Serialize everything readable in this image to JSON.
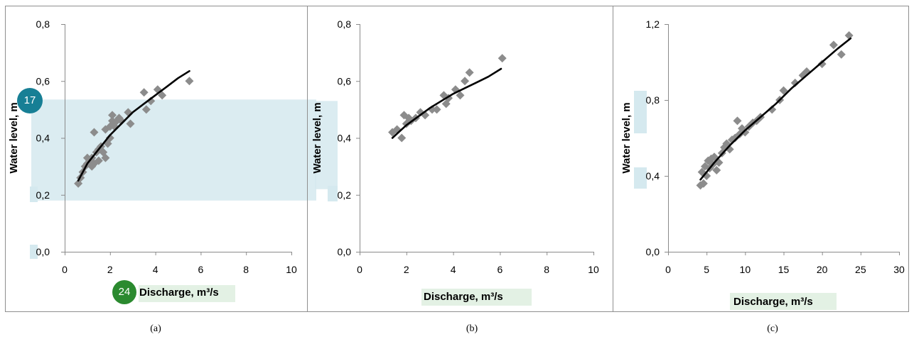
{
  "captions": [
    "(a)",
    "(b)",
    "(c)"
  ],
  "badges": [
    "17",
    "24"
  ],
  "colors": {
    "points": "#8c8c8c",
    "trend": "#000000",
    "highlight": "#d5e9ef",
    "label_highlight": "#e3f1e4",
    "frame": "#8f8f8f",
    "badge_teal": "#177f95",
    "badge_green": "#2b8a2f"
  },
  "chart_data": [
    {
      "type": "scatter",
      "title": "",
      "xlabel": "Discharge, m³/s",
      "ylabel": "Water level, m",
      "xlim": [
        0,
        10
      ],
      "ylim": [
        0,
        0.8
      ],
      "xticks": [
        "0",
        "2",
        "4",
        "6",
        "8",
        "10"
      ],
      "yticks": [
        "0,0",
        "0,2",
        "0,4",
        "0,6",
        "0,8"
      ],
      "series": [
        {
          "marker": "diamond",
          "x": [
            0.6,
            0.7,
            0.8,
            0.9,
            1.0,
            1.0,
            1.1,
            1.2,
            1.2,
            1.3,
            1.3,
            1.4,
            1.5,
            1.5,
            1.6,
            1.7,
            1.8,
            1.8,
            1.9,
            2.0,
            2.0,
            2.1,
            2.1,
            2.2,
            2.3,
            2.4,
            2.5,
            2.8,
            2.9,
            3.5,
            3.6,
            3.8,
            4.1,
            4.3,
            5.5
          ],
          "y": [
            0.24,
            0.26,
            0.28,
            0.3,
            0.31,
            0.33,
            0.32,
            0.33,
            0.3,
            0.42,
            0.31,
            0.35,
            0.32,
            0.36,
            0.37,
            0.35,
            0.33,
            0.43,
            0.38,
            0.4,
            0.44,
            0.48,
            0.46,
            0.44,
            0.46,
            0.47,
            0.46,
            0.49,
            0.45,
            0.56,
            0.5,
            0.53,
            0.57,
            0.55,
            0.6
          ]
        }
      ],
      "trendline": {
        "x": [
          0.6,
          1,
          1.5,
          2,
          2.5,
          3,
          3.5,
          4,
          4.5,
          5,
          5.5
        ],
        "y": [
          0.25,
          0.31,
          0.36,
          0.41,
          0.45,
          0.49,
          0.52,
          0.55,
          0.58,
          0.61,
          0.635
        ]
      },
      "highlight_band": [
        0.18,
        0.535
      ]
    },
    {
      "type": "scatter",
      "title": "",
      "xlabel": "Discharge, m³/s",
      "ylabel": "Water level, m",
      "xlim": [
        0,
        10
      ],
      "ylim": [
        0,
        0.8
      ],
      "xticks": [
        "0",
        "2",
        "4",
        "6",
        "8",
        "10"
      ],
      "yticks": [
        "0,0",
        "0,2",
        "0,4",
        "0,6",
        "0,8"
      ],
      "series": [
        {
          "marker": "diamond",
          "x": [
            1.4,
            1.6,
            1.8,
            1.9,
            2.0,
            2.1,
            2.2,
            2.4,
            2.6,
            2.8,
            3.1,
            3.3,
            3.6,
            3.7,
            3.8,
            4.1,
            4.3,
            4.5,
            4.7,
            6.1
          ],
          "y": [
            0.42,
            0.43,
            0.4,
            0.48,
            0.45,
            0.47,
            0.46,
            0.47,
            0.49,
            0.48,
            0.5,
            0.5,
            0.55,
            0.52,
            0.54,
            0.57,
            0.55,
            0.6,
            0.63,
            0.68
          ]
        }
      ],
      "trendline": {
        "x": [
          1.4,
          2,
          2.5,
          3,
          3.5,
          4,
          4.5,
          5,
          5.5,
          6.05
        ],
        "y": [
          0.4,
          0.445,
          0.475,
          0.505,
          0.53,
          0.555,
          0.575,
          0.595,
          0.615,
          0.643
        ]
      },
      "highlight_band": [
        0.22,
        0.53
      ]
    },
    {
      "type": "scatter",
      "title": "",
      "xlabel": "Discharge, m³/s",
      "ylabel": "Water level, m",
      "xlim": [
        0,
        30
      ],
      "ylim": [
        0,
        1.2
      ],
      "xticks": [
        "0",
        "5",
        "10",
        "15",
        "20",
        "25",
        "30"
      ],
      "yticks": [
        "0,0",
        "0,4",
        "0,8",
        "1,2"
      ],
      "series": [
        {
          "marker": "diamond",
          "x": [
            4.2,
            4.4,
            4.6,
            4.8,
            5.0,
            5.2,
            5.4,
            5.6,
            5.8,
            6.0,
            6.3,
            6.6,
            7.0,
            7.3,
            7.6,
            8.0,
            8.3,
            8.7,
            9.0,
            9.3,
            9.6,
            10.0,
            10.5,
            11.0,
            11.5,
            12.0,
            13.5,
            14.5,
            15.0,
            16.5,
            17.5,
            18.0,
            20.0,
            21.5,
            22.5,
            23.5
          ],
          "y": [
            0.35,
            0.42,
            0.36,
            0.45,
            0.4,
            0.48,
            0.44,
            0.49,
            0.46,
            0.5,
            0.43,
            0.47,
            0.52,
            0.55,
            0.57,
            0.54,
            0.59,
            0.6,
            0.69,
            0.62,
            0.65,
            0.63,
            0.66,
            0.68,
            0.69,
            0.71,
            0.75,
            0.8,
            0.85,
            0.89,
            0.93,
            0.95,
            0.99,
            1.09,
            1.04,
            1.14
          ]
        }
      ],
      "trendline": {
        "x": [
          4.2,
          6,
          8,
          10,
          12,
          14,
          16,
          18,
          20,
          22,
          23.7
        ],
        "y": [
          0.38,
          0.47,
          0.56,
          0.64,
          0.71,
          0.78,
          0.86,
          0.93,
          1.0,
          1.07,
          1.125
        ]
      },
      "highlight_band": null
    }
  ]
}
